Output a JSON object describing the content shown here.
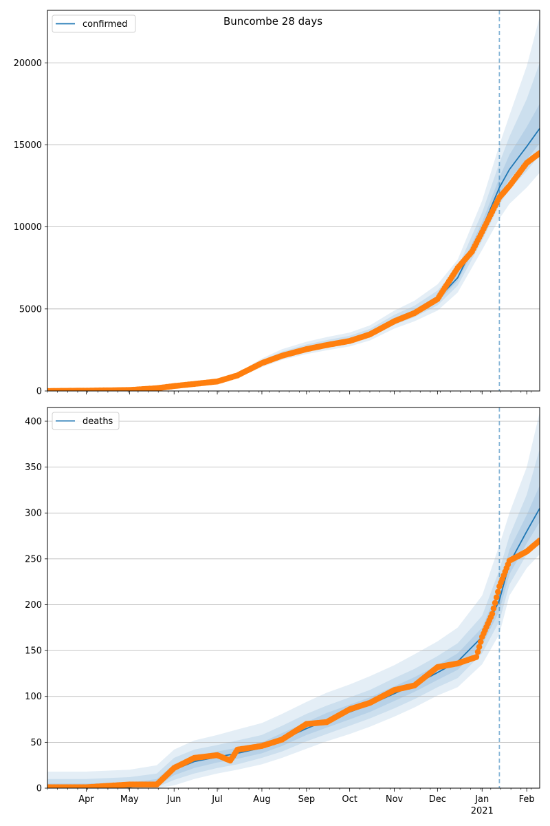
{
  "title": "Buncombe 28 days",
  "colors": {
    "model": "#1f77b4",
    "observed": "#ff7f0e",
    "band": "#1f77b4",
    "grid": "#b0b0b0",
    "forecast_line": "#1f77b4"
  },
  "x_axis": {
    "start": "2020-03-05",
    "end": "2021-02-10",
    "month_ticks": [
      "2020-04-01",
      "2020-05-01",
      "2020-06-01",
      "2020-07-01",
      "2020-08-01",
      "2020-09-01",
      "2020-10-01",
      "2020-11-01",
      "2020-12-01",
      "2021-01-01",
      "2021-02-01"
    ],
    "month_labels": [
      "Apr",
      "May",
      "Jun",
      "Jul",
      "Aug",
      "Sep",
      "Oct",
      "Nov",
      "Dec",
      "Jan",
      "Feb"
    ],
    "year_label": "2021",
    "forecast_start": "2021-01-13"
  },
  "chart_data": [
    {
      "type": "line",
      "legend": "confirmed",
      "legend_position": "top-left",
      "grid": "horizontal",
      "ylim": [
        0,
        23200
      ],
      "yticks": [
        0,
        5000,
        10000,
        15000,
        20000
      ],
      "ytick_labels": [
        "0",
        "5000",
        "10000",
        "15000",
        "20000"
      ],
      "model": {
        "x": [
          "2020-03-05",
          "2020-04-01",
          "2020-05-01",
          "2020-05-20",
          "2020-06-01",
          "2020-06-15",
          "2020-07-01",
          "2020-07-15",
          "2020-08-01",
          "2020-08-15",
          "2020-09-01",
          "2020-09-15",
          "2020-10-01",
          "2020-10-15",
          "2020-11-01",
          "2020-11-15",
          "2020-12-01",
          "2020-12-15",
          "2021-01-01",
          "2021-01-13",
          "2021-01-20",
          "2021-02-01",
          "2021-02-10"
        ],
        "y": [
          0,
          20,
          60,
          150,
          250,
          400,
          550,
          900,
          1700,
          2200,
          2600,
          2850,
          3100,
          3500,
          4300,
          4800,
          5600,
          6900,
          9900,
          12400,
          13500,
          14900,
          16000
        ],
        "bands": [
          {
            "lower": [
              0,
              0,
              20,
              80,
              180,
              320,
              470,
              780,
              1450,
              1900,
              2250,
              2480,
              2720,
              3080,
              3800,
              4250,
              4900,
              6000,
              8600,
              10500,
              11400,
              12400,
              13300
            ],
            "upper": [
              80,
              120,
              160,
              280,
              380,
              550,
              700,
              1080,
              1980,
              2550,
              3000,
              3280,
              3560,
              4000,
              4900,
              5500,
              6500,
              8000,
              11600,
              15000,
              16800,
              19800,
              22800
            ]
          },
          {
            "lower": [
              0,
              5,
              35,
              110,
              210,
              355,
              505,
              830,
              1560,
              2030,
              2410,
              2650,
              2890,
              3270,
              4030,
              4500,
              5220,
              6420,
              9180,
              11350,
              12300,
              13400,
              14400
            ],
            "upper": [
              50,
              70,
              110,
              220,
              310,
              475,
              620,
              1000,
              1870,
              2400,
              2830,
              3100,
              3370,
              3780,
              4640,
              5200,
              6120,
              7500,
              10880,
              13900,
              15500,
              17800,
              20000
            ]
          },
          {
            "lower": [
              0,
              12,
              48,
              130,
              232,
              380,
              530,
              870,
              1640,
              2130,
              2520,
              2760,
              3000,
              3400,
              4180,
              4670,
              5430,
              6690,
              9560,
              11900,
              12900,
              14100,
              15100
            ],
            "upper": [
              25,
              40,
              85,
              185,
              280,
              430,
              580,
              950,
              1790,
              2290,
              2700,
              2960,
              3220,
              3620,
              4450,
              4960,
              5820,
              7150,
              10300,
              13000,
              14400,
              16100,
              17500
            ]
          }
        ]
      },
      "observed": {
        "x": [
          "2020-03-05",
          "2020-04-01",
          "2020-05-01",
          "2020-05-20",
          "2020-06-01",
          "2020-06-15",
          "2020-07-01",
          "2020-07-15",
          "2020-08-01",
          "2020-08-15",
          "2020-09-01",
          "2020-09-15",
          "2020-10-01",
          "2020-10-15",
          "2020-11-01",
          "2020-11-15",
          "2020-12-01",
          "2020-12-15",
          "2020-12-25",
          "2021-01-01",
          "2021-01-13",
          "2021-01-20",
          "2021-02-01",
          "2021-02-10"
        ],
        "y": [
          0,
          20,
          60,
          170,
          300,
          430,
          580,
          950,
          1700,
          2150,
          2550,
          2800,
          3050,
          3450,
          4250,
          4750,
          5600,
          7500,
          8500,
          9700,
          11800,
          12500,
          13900,
          14500
        ]
      }
    },
    {
      "type": "line",
      "legend": "deaths",
      "legend_position": "top-left",
      "grid": "horizontal",
      "ylim": [
        0,
        415
      ],
      "yticks": [
        0,
        50,
        100,
        150,
        200,
        250,
        300,
        350,
        400
      ],
      "ytick_labels": [
        "0",
        "50",
        "100",
        "150",
        "200",
        "250",
        "300",
        "350",
        "400"
      ],
      "model": {
        "x": [
          "2020-03-05",
          "2020-04-01",
          "2020-05-01",
          "2020-05-20",
          "2020-06-01",
          "2020-06-15",
          "2020-07-01",
          "2020-07-15",
          "2020-08-01",
          "2020-08-15",
          "2020-09-01",
          "2020-09-15",
          "2020-10-01",
          "2020-10-15",
          "2020-11-01",
          "2020-11-15",
          "2020-12-01",
          "2020-12-15",
          "2021-01-01",
          "2021-01-13",
          "2021-01-20",
          "2021-02-01",
          "2021-02-10"
        ],
        "y": [
          0,
          0,
          1,
          5,
          20,
          29,
          34,
          38,
          44,
          53,
          65,
          74,
          83,
          91,
          103,
          113,
          126,
          138,
          165,
          205,
          245,
          280,
          305
        ],
        "bands": [
          {
            "lower": [
              0,
              0,
              0,
              0,
              3,
              10,
              16,
              20,
              26,
              33,
              43,
              51,
              59,
              67,
              78,
              88,
              101,
              110,
              135,
              168,
              210,
              240,
              255
            ],
            "upper": [
              18,
              18,
              20,
              25,
              42,
              52,
              58,
              64,
              71,
              81,
              94,
              104,
              113,
              122,
              134,
              146,
              160,
              175,
              210,
              265,
              300,
              350,
              410
            ]
          },
          {
            "lower": [
              0,
              0,
              0,
              1,
              9,
              16,
              22,
              26,
              33,
              40,
              51,
              59,
              68,
              76,
              87,
              97,
              110,
              120,
              147,
              182,
              222,
              255,
              275
            ],
            "upper": [
              10,
              10,
              12,
              16,
              33,
              42,
              47,
              52,
              58,
              68,
              81,
              90,
              99,
              107,
              120,
              130,
              144,
              158,
              188,
              238,
              275,
              320,
              370
            ]
          },
          {
            "lower": [
              0,
              0,
              0,
              2,
              14,
              22,
              28,
              32,
              38,
              46,
              58,
              66,
              75,
              83,
              95,
              105,
              118,
              129,
              156,
              193,
              233,
              267,
              290
            ],
            "upper": [
              5,
              5,
              6,
              10,
              26,
              35,
              40,
              44,
              50,
              60,
              72,
              82,
              91,
              99,
              111,
              121,
              134,
              147,
              175,
              220,
              260,
              298,
              330
            ]
          }
        ]
      },
      "observed": {
        "x": [
          "2020-03-05",
          "2020-04-01",
          "2020-05-01",
          "2020-05-20",
          "2020-06-01",
          "2020-06-15",
          "2020-07-01",
          "2020-07-10",
          "2020-07-15",
          "2020-08-01",
          "2020-08-15",
          "2020-09-01",
          "2020-09-15",
          "2020-10-01",
          "2020-10-15",
          "2020-11-01",
          "2020-11-15",
          "2020-12-01",
          "2020-12-15",
          "2020-12-28",
          "2021-01-01",
          "2021-01-08",
          "2021-01-13",
          "2021-01-20",
          "2021-02-01",
          "2021-02-10"
        ],
        "y": [
          1,
          1,
          4,
          4,
          22,
          33,
          36,
          30,
          42,
          46,
          53,
          70,
          72,
          86,
          93,
          107,
          112,
          132,
          136,
          143,
          165,
          190,
          220,
          248,
          258,
          270
        ]
      }
    }
  ]
}
